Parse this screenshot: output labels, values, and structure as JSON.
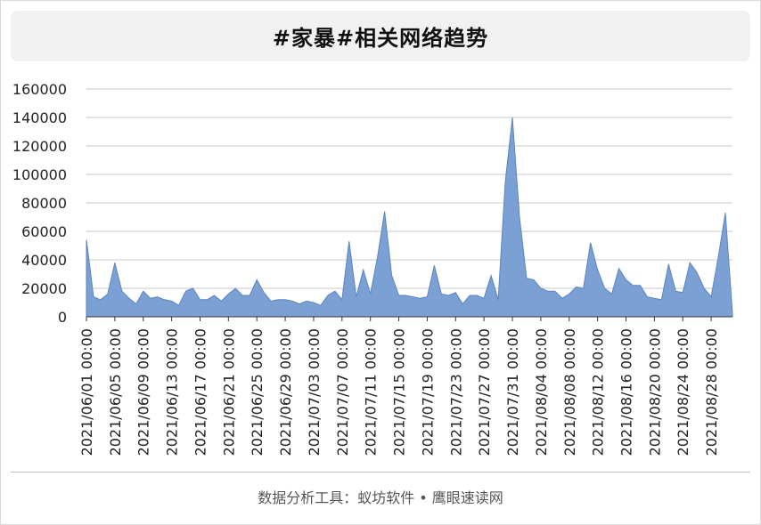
{
  "title": "#家暴#相关网络趋势",
  "footer": "数据分析工具：蚁坊软件 • 鹰眼速读网",
  "colors": {
    "area_fill": "#7ba0d4",
    "area_stroke": "#5b84c3",
    "grid": "#c8c8c8",
    "axis": "#333333"
  },
  "chart_data": {
    "type": "area",
    "title": "#家暴#相关网络趋势",
    "xlabel": "",
    "ylabel": "",
    "ylim": [
      0,
      160000
    ],
    "y_ticks": [
      0,
      20000,
      40000,
      60000,
      80000,
      100000,
      120000,
      140000,
      160000
    ],
    "grid": true,
    "x_tick_labels": [
      "2021/06/01 00:00",
      "2021/06/05 00:00",
      "2021/06/09 00:00",
      "2021/06/13 00:00",
      "2021/06/17 00:00",
      "2021/06/21 00:00",
      "2021/06/25 00:00",
      "2021/06/29 00:00",
      "2021/07/03 00:00",
      "2021/07/07 00:00",
      "2021/07/11 00:00",
      "2021/07/15 00:00",
      "2021/07/19 00:00",
      "2021/07/23 00:00",
      "2021/07/27 00:00",
      "2021/07/31 00:00",
      "2021/08/04 00:00",
      "2021/08/08 00:00",
      "2021/08/12 00:00",
      "2021/08/16 00:00",
      "2021/08/20 00:00",
      "2021/08/24 00:00",
      "2021/08/28 00:00"
    ],
    "x_start": "2021/06/01",
    "x_end": "2021/08/31",
    "values": [
      54000,
      14000,
      12000,
      16000,
      38000,
      18000,
      13000,
      9000,
      18000,
      13000,
      14000,
      12000,
      11000,
      8000,
      18000,
      20000,
      12000,
      12000,
      15000,
      11000,
      16000,
      20000,
      15000,
      15000,
      26000,
      17000,
      11000,
      12000,
      12000,
      11000,
      9000,
      11000,
      10000,
      8000,
      15000,
      18000,
      12000,
      53000,
      14000,
      33000,
      16000,
      42000,
      74000,
      29000,
      15000,
      15000,
      14000,
      13000,
      14000,
      36000,
      16000,
      15000,
      17000,
      9000,
      15000,
      15000,
      13000,
      29000,
      12000,
      95000,
      140000,
      70000,
      27000,
      26000,
      20000,
      18000,
      18000,
      13000,
      16000,
      21000,
      20000,
      52000,
      33000,
      20000,
      16000,
      34000,
      26000,
      22000,
      22000,
      14000,
      13000,
      12000,
      37000,
      18000,
      17000,
      38000,
      31000,
      20000,
      14000,
      42000,
      73000,
      2000
    ]
  }
}
